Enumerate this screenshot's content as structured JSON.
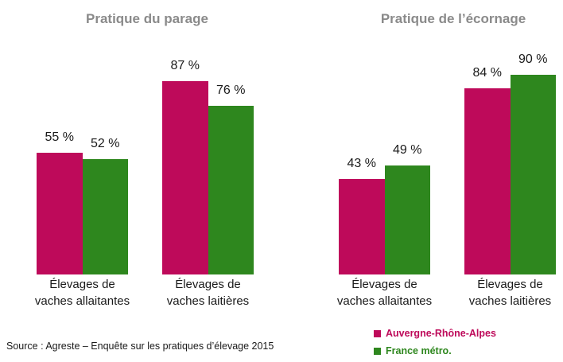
{
  "chart_data": [
    {
      "type": "bar",
      "title": "Pratique du parage",
      "categories": [
        "Élevages de vaches allaitantes",
        "Élevages de vaches laitières"
      ],
      "series": [
        {
          "name": "Auvergne-Rhône-Alpes",
          "color": "#be0a5a",
          "values": [
            55,
            87
          ],
          "value_labels": [
            "55 %",
            "87 %"
          ]
        },
        {
          "name": "France métro.",
          "color": "#2e871e",
          "values": [
            52,
            76
          ],
          "value_labels": [
            "52 %",
            "76 %"
          ]
        }
      ],
      "ylim": [
        0,
        100
      ]
    },
    {
      "type": "bar",
      "title": "Pratique de l’écornage",
      "categories": [
        "Élevages de vaches allaitantes",
        "Élevages de vaches laitières"
      ],
      "series": [
        {
          "name": "Auvergne-Rhône-Alpes",
          "color": "#be0a5a",
          "values": [
            43,
            84
          ],
          "value_labels": [
            "43 %",
            "84 %"
          ]
        },
        {
          "name": "France métro.",
          "color": "#2e871e",
          "values": [
            49,
            90
          ],
          "value_labels": [
            "49 %",
            "90 %"
          ]
        }
      ],
      "ylim": [
        0,
        100
      ]
    }
  ],
  "source": "Source : Agreste – Enquête sur les pratiques d’élevage 2015"
}
